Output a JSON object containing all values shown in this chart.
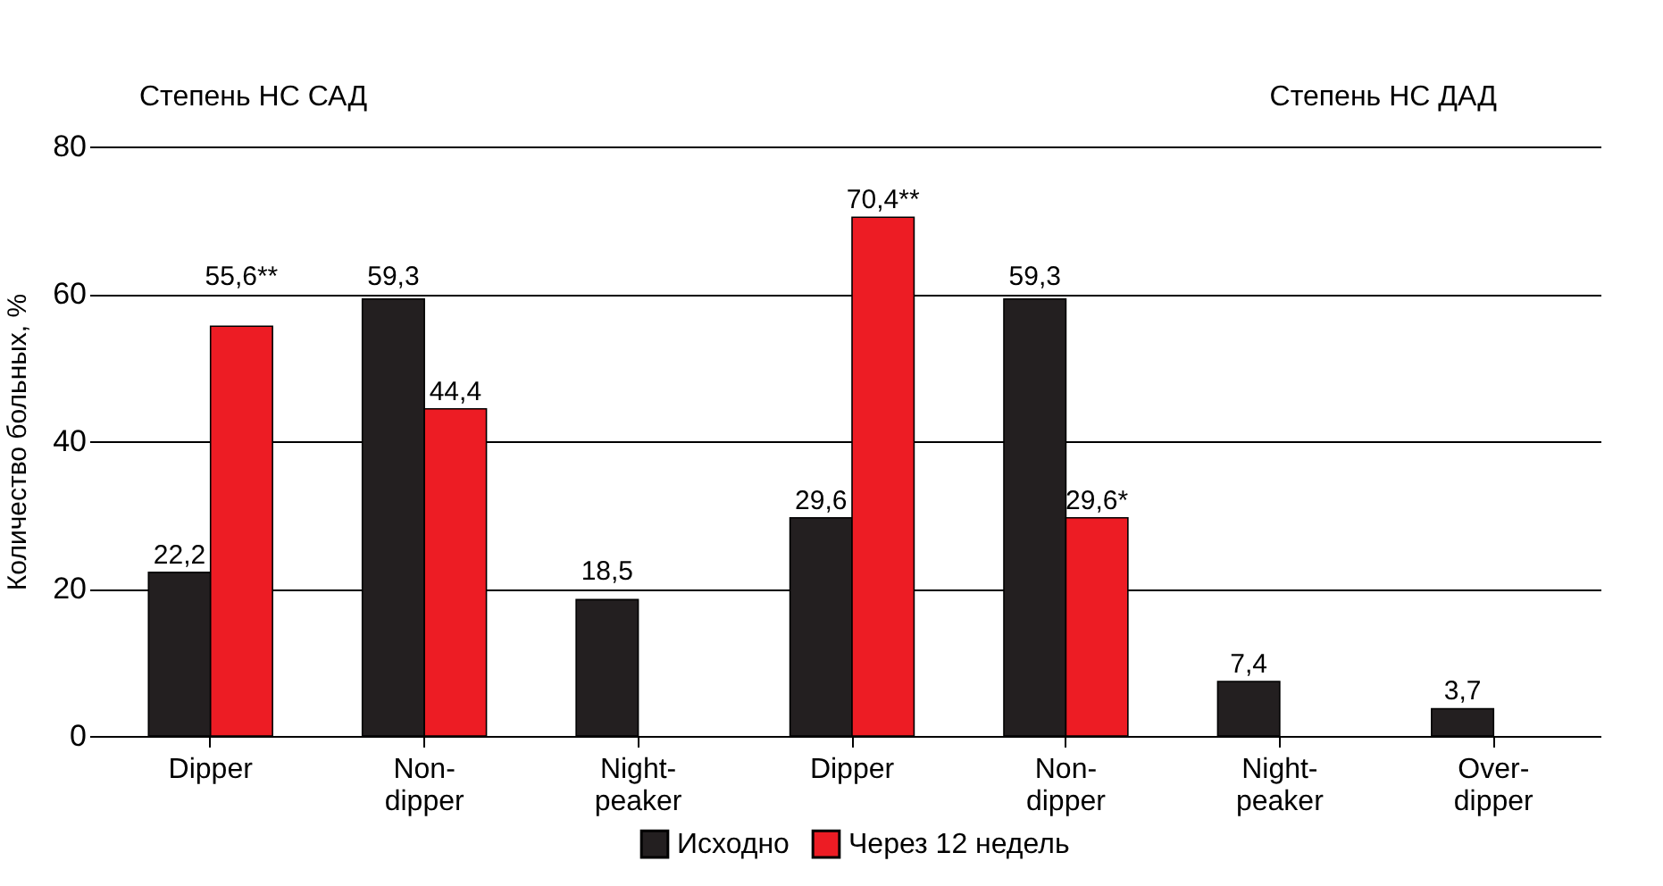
{
  "chart_data": {
    "type": "bar",
    "ylabel": "Количество больных, %",
    "categories": [
      "Dipper",
      "Non-dipper",
      "Night-peaker",
      "Dipper",
      "Non-dipper",
      "Night-peaker",
      "Over-dipper"
    ],
    "series": [
      {
        "name": "Исходно",
        "color": "#231f20",
        "values": [
          22.2,
          59.3,
          18.5,
          29.6,
          59.3,
          7.4,
          3.7
        ],
        "value_labels": [
          "22,2",
          "59,3",
          "18,5",
          "29,6",
          "59,3",
          "7,4",
          "3,7"
        ]
      },
      {
        "name": "Через 12 недель",
        "color": "#ed1c24",
        "values": [
          55.6,
          44.4,
          null,
          70.4,
          29.6,
          null,
          null
        ],
        "value_labels": [
          "55,6**",
          "44,4",
          null,
          "70,4**",
          "29,6*",
          null,
          null
        ]
      }
    ],
    "ylim": [
      0,
      80
    ],
    "yticks": [
      0,
      20,
      40,
      60,
      80
    ],
    "grid": "y",
    "legend": "bottom",
    "annotations": [
      "Степень НС  САД",
      "Степень НС ДАД"
    ]
  }
}
